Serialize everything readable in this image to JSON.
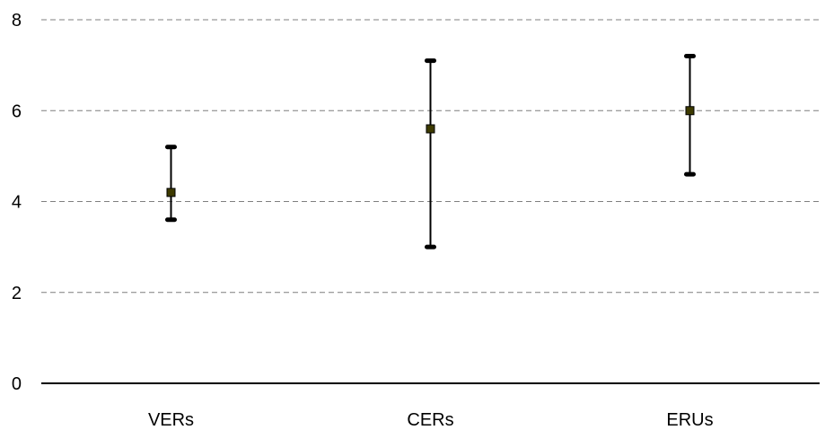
{
  "chart_data": {
    "type": "scatter",
    "title": "",
    "xlabel": "",
    "ylabel": "",
    "categories": [
      "VERs",
      "CERs",
      "ERUs"
    ],
    "series": [
      {
        "values": [
          4.2,
          5.6,
          6.0
        ],
        "low": [
          3.6,
          3.0,
          4.6
        ],
        "high": [
          5.2,
          7.1,
          7.2
        ]
      }
    ],
    "ylim": [
      0,
      8
    ],
    "yticks": [
      "0",
      "2",
      "4",
      "6",
      "8"
    ],
    "grid": "dashed horizontal",
    "legend": "none",
    "colors": {
      "marker": "#3d3a00",
      "error_bar": "#000000",
      "grid": "#7f7f7f",
      "axis": "#000000"
    }
  }
}
